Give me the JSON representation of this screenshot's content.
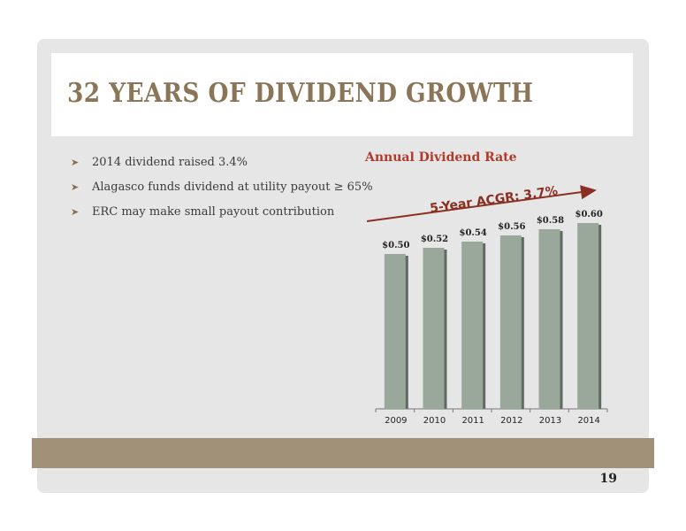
{
  "slide": {
    "title": "32 YEARS OF DIVIDEND GROWTH",
    "bullets": [
      "2014 dividend raised 3.4%",
      "Alagasco funds dividend at utility payout ≥ 65%",
      "ERC may make small payout contribution"
    ],
    "bullet_icon": "arrowhead-bullet-icon",
    "page_number": "19",
    "colors": {
      "title": "#8a7558",
      "chart_title": "#b13b2a",
      "bar": "#99a89a",
      "arrow": "#8b2f23",
      "band": "#a19179"
    }
  },
  "chart_data": {
    "type": "bar",
    "title": "Annual Dividend Rate",
    "categories": [
      "2009",
      "2010",
      "2011",
      "2012",
      "2013",
      "2014"
    ],
    "values": [
      0.5,
      0.52,
      0.54,
      0.56,
      0.58,
      0.6
    ],
    "data_labels": [
      "$0.50",
      "$0.52",
      "$0.54",
      "$0.56",
      "$0.58",
      "$0.60"
    ],
    "annotation": "5-Year ACGR: 3.7%",
    "ylim": [
      0,
      0.6
    ],
    "grid": false,
    "legend": "none"
  }
}
